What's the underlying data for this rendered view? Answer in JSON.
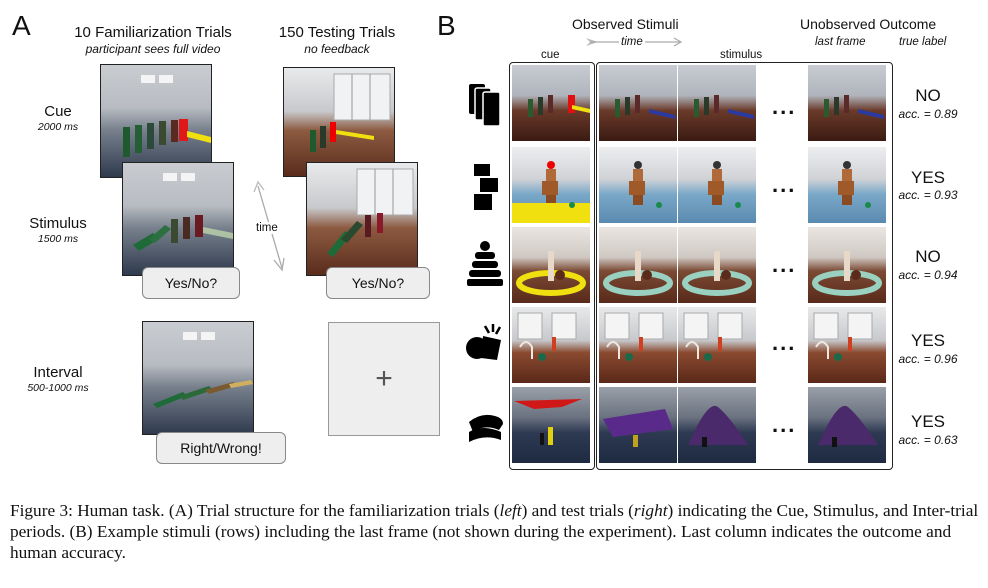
{
  "panel_a": {
    "letter": "A",
    "left_title": "10 Familiarization Trials",
    "left_subtitle": "participant sees full video",
    "right_title": "150 Testing Trials",
    "right_subtitle": "no feedback",
    "time_label": "time",
    "phases": [
      {
        "name": "Cue",
        "duration": "2000 ms"
      },
      {
        "name": "Stimulus",
        "duration": "1500 ms"
      },
      {
        "name": "Interval",
        "duration": "500-1000 ms"
      }
    ],
    "left_prompt": "Yes/No?",
    "right_prompt": "Yes/No?",
    "feedback": "Right/Wrong!",
    "fixation": "+"
  },
  "panel_b": {
    "letter": "B",
    "observed_header": "Observed Stimuli",
    "time_label": "time",
    "cue_label": "cue",
    "stimulus_label": "stimulus",
    "unobserved_header": "Unobserved Outcome",
    "last_frame_label": "last frame",
    "true_label_label": "true label",
    "ellipsis": "...",
    "rows": [
      {
        "icon": "dominoes-icon",
        "outcome": "NO",
        "accuracy": "acc. = 0.89"
      },
      {
        "icon": "support-blocks-icon",
        "outcome": "YES",
        "accuracy": "acc. = 0.93"
      },
      {
        "icon": "tower-stack-icon",
        "outcome": "NO",
        "accuracy": "acc. = 0.94"
      },
      {
        "icon": "collide-objects-icon",
        "outcome": "YES",
        "accuracy": "acc. = 0.96"
      },
      {
        "icon": "drape-cloth-icon",
        "outcome": "YES",
        "accuracy": "acc. = 0.63"
      }
    ]
  },
  "caption": {
    "part1": "Figure 3: Human task. (A) Trial structure for the familiarization trials (",
    "left": "left",
    "part2": ") and test trials (",
    "right": "right",
    "part3": ") indicating the Cue, Stimulus, and Inter-trial periods. (B) Example stimuli (rows) including the last frame (not shown during the experiment). Last column indicates the outcome and human accuracy."
  }
}
